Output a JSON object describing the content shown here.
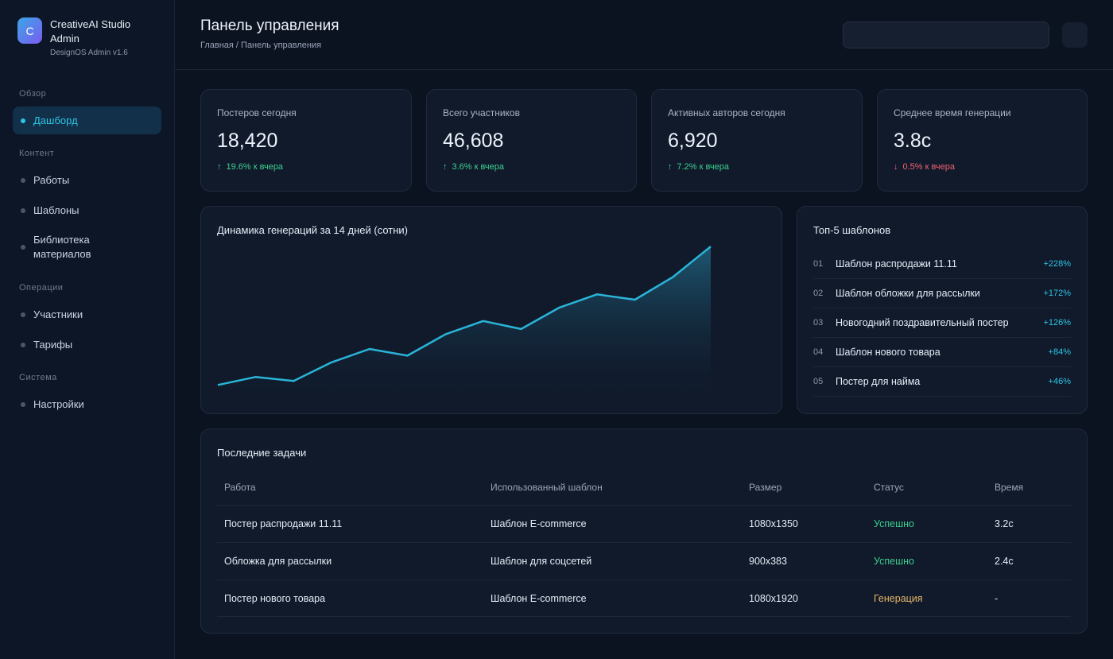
{
  "brand": {
    "logo_letter": "C",
    "title": "CreativeAI Studio Admin",
    "subtitle": "DesignOS Admin v1.6"
  },
  "sidebar": {
    "sections": [
      {
        "label": "Обзор"
      },
      {
        "label": "Контент"
      },
      {
        "label": "Операции"
      },
      {
        "label": "Система"
      }
    ],
    "items": [
      {
        "label": "Дашборд",
        "active": true
      },
      {
        "label": "Работы"
      },
      {
        "label": "Шаблоны"
      },
      {
        "label": "Библиотека материалов"
      },
      {
        "label": "Участники"
      },
      {
        "label": "Тарифы"
      },
      {
        "label": "Настройки"
      }
    ]
  },
  "header": {
    "title": "Панель управления",
    "breadcrumb": "Главная / Панель управления"
  },
  "stats": [
    {
      "label": "Постеров сегодня",
      "value": "18,420",
      "change": "19.6% к вчера",
      "direction": "up",
      "arrow": "↑"
    },
    {
      "label": "Всего участников",
      "value": "46,608",
      "change": "3.6% к вчера",
      "direction": "up",
      "arrow": "↑"
    },
    {
      "label": "Активных авторов сегодня",
      "value": "6,920",
      "change": "7.2% к вчера",
      "direction": "up",
      "arrow": "↑"
    },
    {
      "label": "Среднее время генерации",
      "value": "3.8с",
      "change": "0.5% к вчера",
      "direction": "down",
      "arrow": "↓"
    }
  ],
  "chart_card": {
    "title": "Динамика генераций за 14 дней (сотни)"
  },
  "chart_data": {
    "type": "area",
    "title": "Динамика генераций за 14 дней (сотни)",
    "x": [
      1,
      2,
      3,
      4,
      5,
      6,
      7,
      8,
      9,
      10,
      11,
      12,
      13,
      14
    ],
    "series": [
      {
        "values": [
          10,
          16,
          13,
          27,
          37,
          32,
          48,
          58,
          52,
          68,
          78,
          74,
          91,
          114
        ]
      }
    ],
    "ylim": [
      0,
      120
    ],
    "grid": false,
    "colors": {
      "line": "#2ab4d8",
      "fill_top": "#1f5f7a",
      "fill_bottom": "#101a2b"
    }
  },
  "top_templates": {
    "title": "Топ-5 шаблонов",
    "items": [
      {
        "num": "01",
        "name": "Шаблон распродажи 11.11",
        "pct": "+228%"
      },
      {
        "num": "02",
        "name": "Шаблон обложки для рассылки",
        "pct": "+172%"
      },
      {
        "num": "03",
        "name": "Новогодний поздравительный постер",
        "pct": "+126%"
      },
      {
        "num": "04",
        "name": "Шаблон нового товара",
        "pct": "+84%"
      },
      {
        "num": "05",
        "name": "Постер для найма",
        "pct": "+46%"
      }
    ]
  },
  "tasks": {
    "title": "Последние задачи",
    "columns": [
      "Работа",
      "Использованный шаблон",
      "Размер",
      "Статус",
      "Время"
    ],
    "rows": [
      {
        "work": "Постер распродажи 11.11",
        "template": "Шаблон E-commerce",
        "size": "1080x1350",
        "status": "Успешно",
        "status_type": "ok",
        "time": "3.2с"
      },
      {
        "work": "Обложка для рассылки",
        "template": "Шаблон для соцсетей",
        "size": "900x383",
        "status": "Успешно",
        "status_type": "ok",
        "time": "2.4с"
      },
      {
        "work": "Постер нового товара",
        "template": "Шаблон E-commerce",
        "size": "1080x1920",
        "status": "Генерация",
        "status_type": "wip",
        "time": "-"
      }
    ]
  },
  "colors": {
    "accent": "#2ec4e6",
    "up": "#3ecf8e",
    "down": "#f0616f",
    "wip": "#e6b566",
    "background": "#0b1220"
  }
}
